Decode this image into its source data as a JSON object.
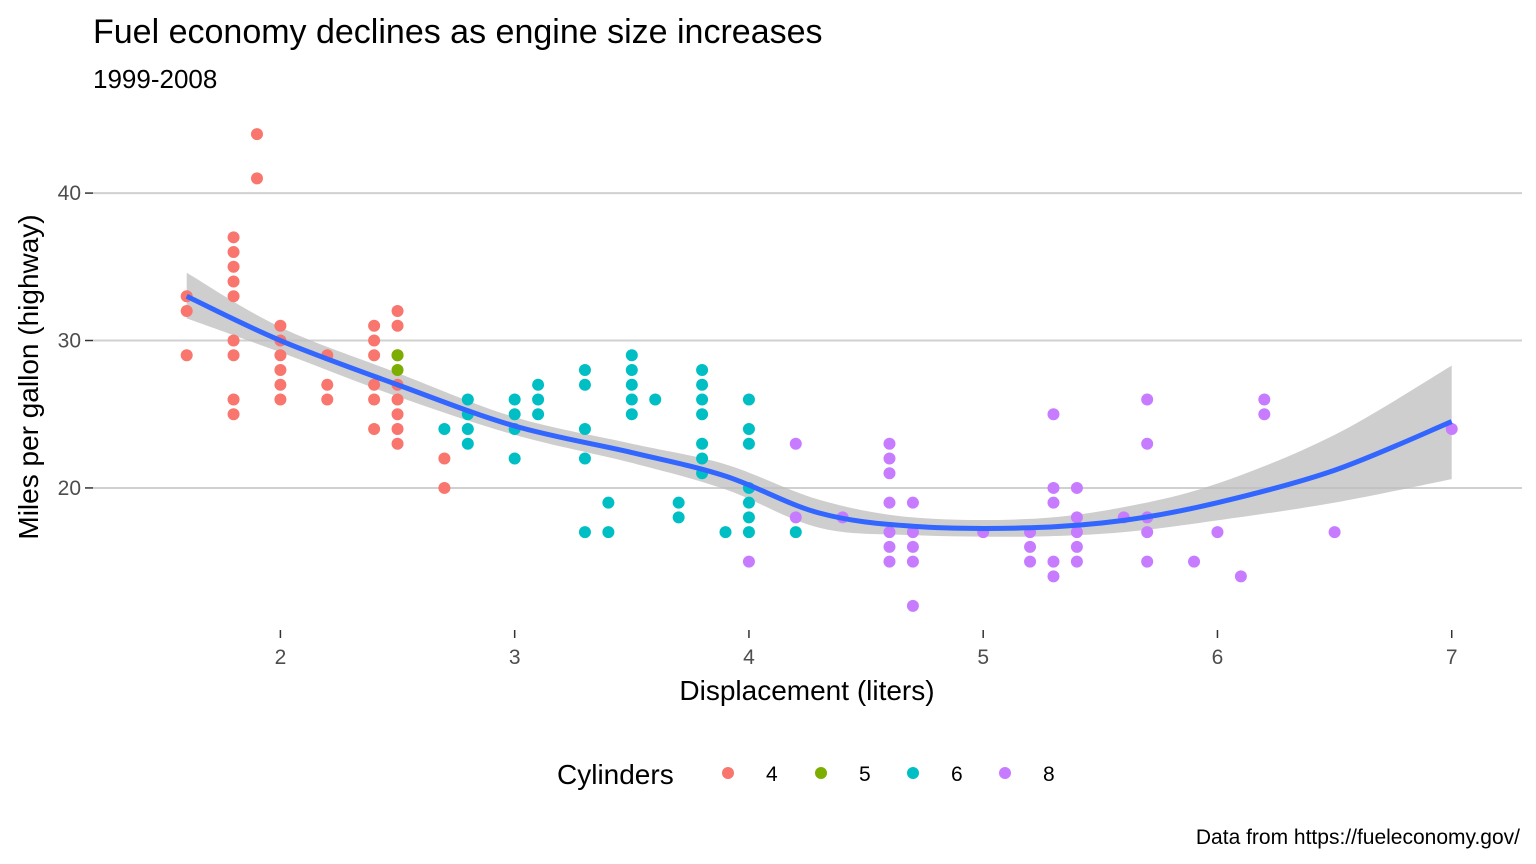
{
  "chart_data": {
    "type": "scatter",
    "title": "Fuel economy declines as engine size increases",
    "subtitle": "1999-2008",
    "caption": "Data from https://fueleconomy.gov/",
    "xlabel": "Displacement (liters)",
    "ylabel": "Miles per gallon (highway)",
    "xlim": [
      1.2,
      7.3
    ],
    "ylim": [
      10.5,
      45.5
    ],
    "x_ticks": [
      2,
      3,
      4,
      5,
      6,
      7
    ],
    "y_ticks": [
      20,
      30,
      40
    ],
    "grid": "horizontal major",
    "legend": {
      "title": "Cylinders",
      "position": "bottom",
      "entries": [
        {
          "label": "4",
          "color": "#F8766D"
        },
        {
          "label": "5",
          "color": "#7CAE00"
        },
        {
          "label": "6",
          "color": "#00BFC4"
        },
        {
          "label": "8",
          "color": "#C77CFF"
        }
      ]
    },
    "series": [
      {
        "name": "4",
        "color": "#F8766D",
        "points": [
          [
            1.6,
            33
          ],
          [
            1.6,
            32
          ],
          [
            1.6,
            29
          ],
          [
            1.8,
            37
          ],
          [
            1.8,
            36
          ],
          [
            1.8,
            35
          ],
          [
            1.8,
            34
          ],
          [
            1.8,
            33
          ],
          [
            1.8,
            30
          ],
          [
            1.8,
            29
          ],
          [
            1.8,
            26
          ],
          [
            1.8,
            25
          ],
          [
            1.9,
            44
          ],
          [
            1.9,
            41
          ],
          [
            2.0,
            31
          ],
          [
            2.0,
            30
          ],
          [
            2.0,
            29
          ],
          [
            2.0,
            28
          ],
          [
            2.0,
            27
          ],
          [
            2.0,
            26
          ],
          [
            2.2,
            29
          ],
          [
            2.2,
            27
          ],
          [
            2.2,
            26
          ],
          [
            2.4,
            31
          ],
          [
            2.4,
            30
          ],
          [
            2.4,
            29
          ],
          [
            2.4,
            27
          ],
          [
            2.4,
            26
          ],
          [
            2.4,
            24
          ],
          [
            2.5,
            32
          ],
          [
            2.5,
            31
          ],
          [
            2.5,
            29
          ],
          [
            2.5,
            27
          ],
          [
            2.5,
            26
          ],
          [
            2.5,
            25
          ],
          [
            2.5,
            24
          ],
          [
            2.5,
            23
          ],
          [
            2.7,
            22
          ],
          [
            2.7,
            20
          ]
        ]
      },
      {
        "name": "5",
        "color": "#7CAE00",
        "points": [
          [
            2.5,
            29
          ],
          [
            2.5,
            28
          ]
        ]
      },
      {
        "name": "6",
        "color": "#00BFC4",
        "points": [
          [
            2.7,
            24
          ],
          [
            2.8,
            26
          ],
          [
            2.8,
            25
          ],
          [
            2.8,
            24
          ],
          [
            2.8,
            23
          ],
          [
            3.0,
            26
          ],
          [
            3.0,
            25
          ],
          [
            3.0,
            24
          ],
          [
            3.0,
            22
          ],
          [
            3.1,
            27
          ],
          [
            3.1,
            26
          ],
          [
            3.1,
            25
          ],
          [
            3.3,
            28
          ],
          [
            3.3,
            27
          ],
          [
            3.3,
            24
          ],
          [
            3.3,
            22
          ],
          [
            3.3,
            17
          ],
          [
            3.4,
            19
          ],
          [
            3.4,
            17
          ],
          [
            3.5,
            29
          ],
          [
            3.5,
            28
          ],
          [
            3.5,
            27
          ],
          [
            3.5,
            26
          ],
          [
            3.5,
            25
          ],
          [
            3.6,
            26
          ],
          [
            3.7,
            19
          ],
          [
            3.7,
            18
          ],
          [
            3.8,
            28
          ],
          [
            3.8,
            27
          ],
          [
            3.8,
            26
          ],
          [
            3.8,
            25
          ],
          [
            3.8,
            23
          ],
          [
            3.8,
            22
          ],
          [
            3.8,
            21
          ],
          [
            3.9,
            17
          ],
          [
            4.0,
            26
          ],
          [
            4.0,
            24
          ],
          [
            4.0,
            23
          ],
          [
            4.0,
            20
          ],
          [
            4.0,
            19
          ],
          [
            4.0,
            18
          ],
          [
            4.0,
            17
          ],
          [
            4.2,
            17
          ]
        ]
      },
      {
        "name": "8",
        "color": "#C77CFF",
        "points": [
          [
            4.0,
            15
          ],
          [
            4.2,
            23
          ],
          [
            4.2,
            18
          ],
          [
            4.4,
            18
          ],
          [
            4.6,
            23
          ],
          [
            4.6,
            22
          ],
          [
            4.6,
            21
          ],
          [
            4.6,
            19
          ],
          [
            4.6,
            17
          ],
          [
            4.6,
            16
          ],
          [
            4.6,
            15
          ],
          [
            4.7,
            19
          ],
          [
            4.7,
            17
          ],
          [
            4.7,
            16
          ],
          [
            4.7,
            15
          ],
          [
            4.7,
            12
          ],
          [
            5.0,
            17
          ],
          [
            5.2,
            17
          ],
          [
            5.2,
            16
          ],
          [
            5.2,
            15
          ],
          [
            5.3,
            25
          ],
          [
            5.3,
            20
          ],
          [
            5.3,
            19
          ],
          [
            5.3,
            15
          ],
          [
            5.3,
            14
          ],
          [
            5.4,
            20
          ],
          [
            5.4,
            18
          ],
          [
            5.4,
            17
          ],
          [
            5.4,
            16
          ],
          [
            5.4,
            15
          ],
          [
            5.6,
            18
          ],
          [
            5.7,
            26
          ],
          [
            5.7,
            23
          ],
          [
            5.7,
            18
          ],
          [
            5.7,
            17
          ],
          [
            5.7,
            15
          ],
          [
            5.9,
            15
          ],
          [
            6.0,
            17
          ],
          [
            6.1,
            14
          ],
          [
            6.2,
            26
          ],
          [
            6.2,
            25
          ],
          [
            6.5,
            17
          ],
          [
            7.0,
            24
          ]
        ]
      }
    ],
    "smooth": {
      "color": "#3366FF",
      "band_color": "#bdbdbd",
      "x": [
        1.6,
        2.0,
        2.5,
        3.0,
        3.5,
        3.9,
        4.3,
        4.7,
        5.2,
        5.6,
        6.0,
        6.5,
        7.0
      ],
      "y": [
        33.0,
        30.0,
        27.0,
        24.2,
        22.4,
        20.8,
        18.3,
        17.4,
        17.3,
        17.8,
        19.0,
        21.2,
        24.5
      ],
      "lower": [
        31.5,
        29.2,
        26.2,
        23.6,
        21.7,
        19.9,
        17.3,
        16.8,
        16.7,
        17.0,
        17.8,
        19.0,
        20.6
      ],
      "upper": [
        34.6,
        30.9,
        27.8,
        24.8,
        23.0,
        21.6,
        19.2,
        18.0,
        17.9,
        18.7,
        20.3,
        23.6,
        28.3
      ]
    }
  }
}
